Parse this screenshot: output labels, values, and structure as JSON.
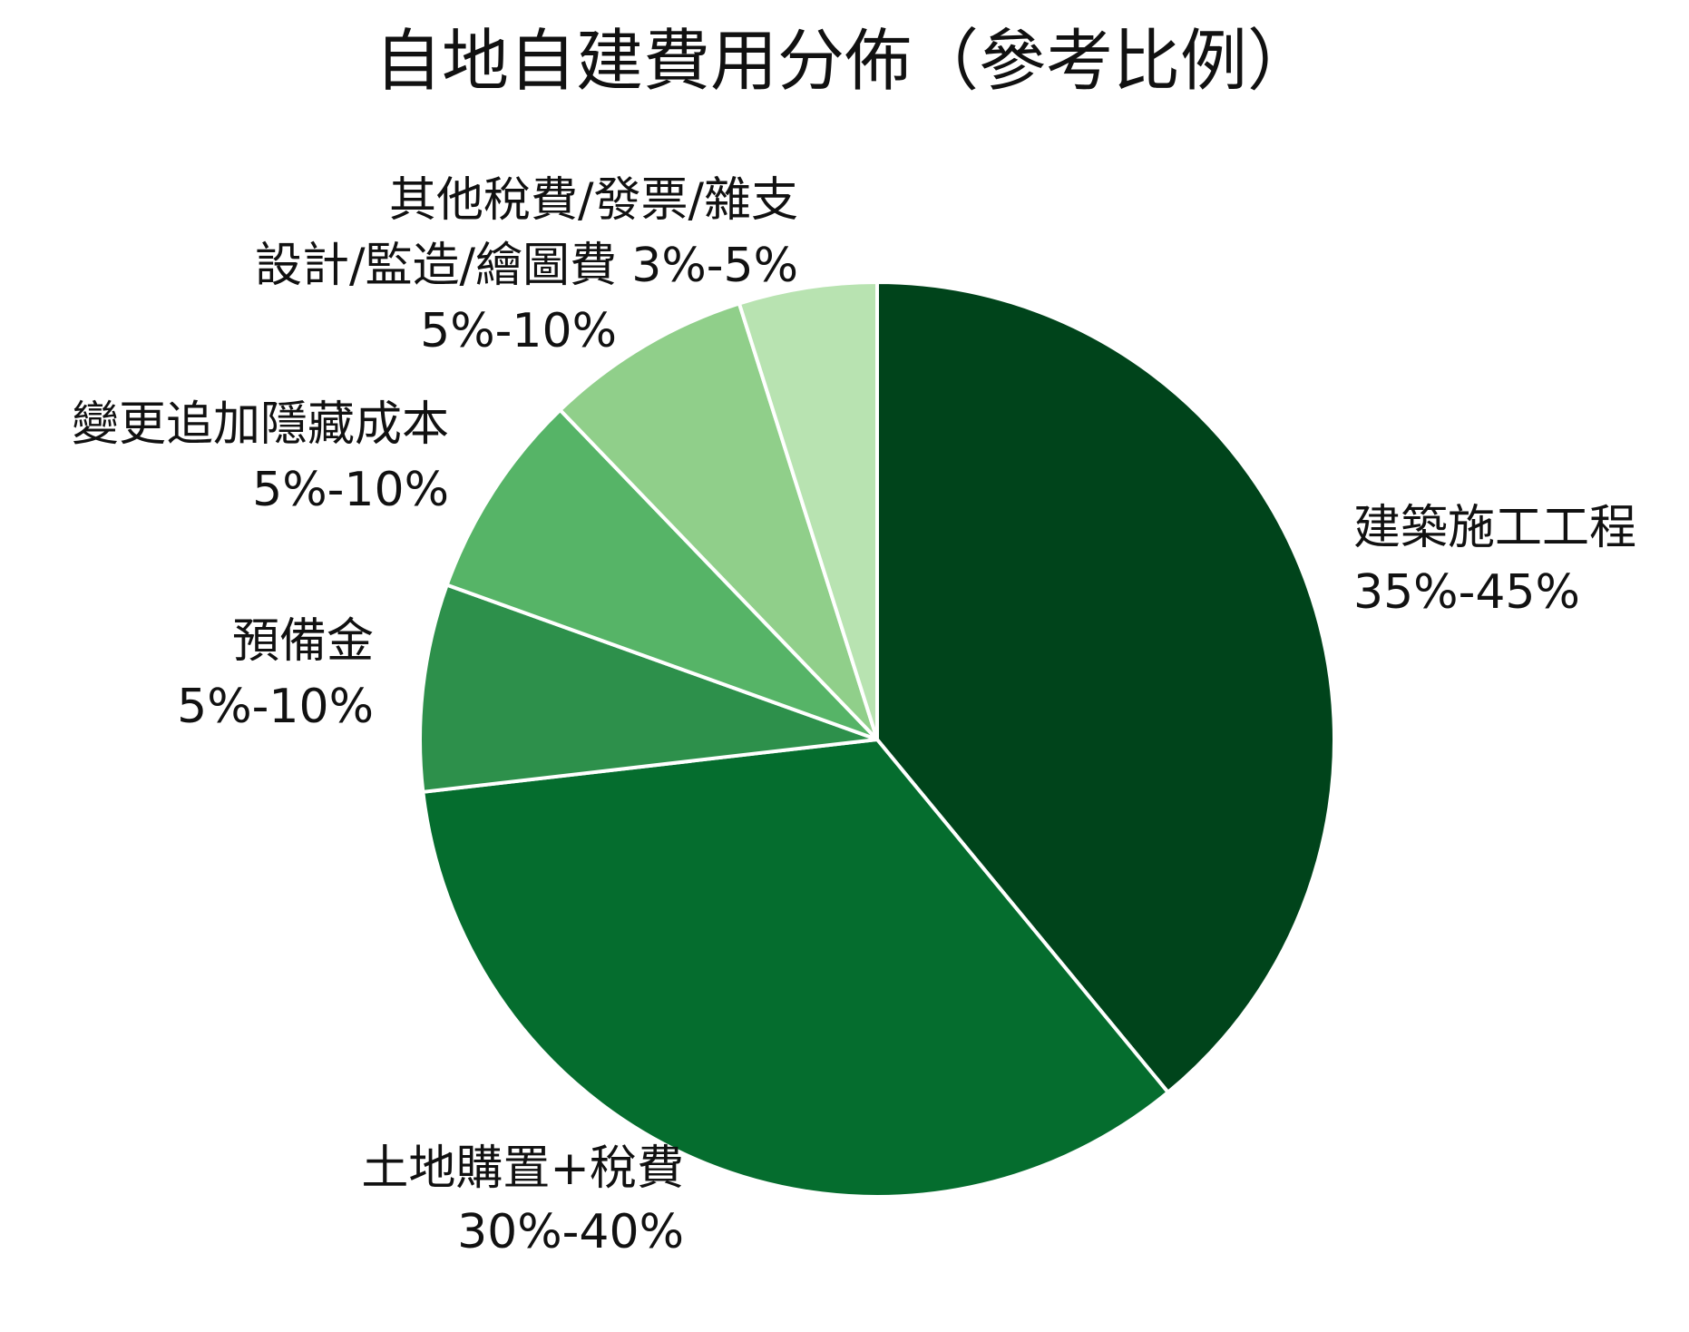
{
  "chart_data": {
    "type": "pie",
    "title": "自地自建費用分佈（參考比例）",
    "categories": [
      "建築施工工程",
      "土地購置+稅費",
      "預備金",
      "變更追加隱藏成本",
      "設計/監造/繪圖費",
      "其他稅費/發票/雜支"
    ],
    "values": [
      40,
      35,
      7.5,
      7.5,
      7.5,
      5
    ],
    "value_labels": [
      "35%-45%",
      "30%-40%",
      "5%-10%",
      "5%-10%",
      "5%-10%",
      "3%-5%"
    ],
    "colors": [
      "#00441b",
      "#056d2e",
      "#2d904b",
      "#56b467",
      "#90cf8a",
      "#b8e3b1"
    ]
  }
}
